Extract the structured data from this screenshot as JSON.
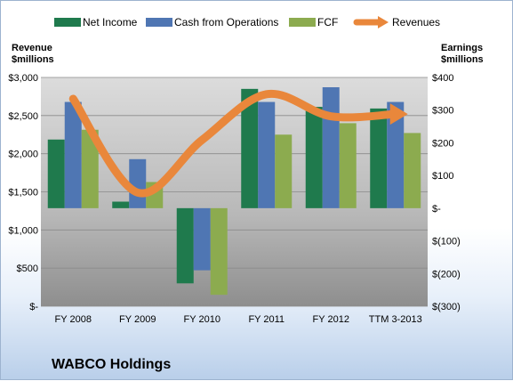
{
  "chart_data": {
    "type": "bar",
    "company_name": "WABCO Holdings",
    "categories": [
      "FY 2008",
      "FY 2009",
      "FY 2010",
      "FY 2011",
      "FY 2012",
      "TTM 3-2013"
    ],
    "left_axis": {
      "title_line1": "Revenue",
      "title_line2": "$millions",
      "ticks": [
        "$-",
        "$500",
        "$1,000",
        "$1,500",
        "$2,000",
        "$2,500",
        "$3,000"
      ],
      "ylim": [
        0,
        3000
      ]
    },
    "right_axis": {
      "title_line1": "Earnings",
      "title_line2": "$millions",
      "ticks": [
        "$(300)",
        "$(200)",
        "$(100)",
        "$-",
        "$100",
        "$200",
        "$300",
        "$400"
      ],
      "ylim": [
        -300,
        400
      ]
    },
    "series": [
      {
        "name": "Net Income",
        "axis": "right",
        "kind": "bar",
        "color": "#1f7a4d",
        "values": [
          210,
          20,
          -230,
          365,
          310,
          305
        ]
      },
      {
        "name": "Cash from Operations",
        "axis": "right",
        "kind": "bar",
        "color": "#4f76b3",
        "values": [
          325,
          150,
          -190,
          325,
          370,
          325
        ]
      },
      {
        "name": "FCF",
        "axis": "right",
        "kind": "bar",
        "color": "#8cab4f",
        "values": [
          240,
          80,
          -265,
          225,
          260,
          230
        ]
      },
      {
        "name": "Revenues",
        "axis": "left",
        "kind": "line",
        "color": "#e9873b",
        "values": [
          2720,
          1490,
          2180,
          2780,
          2490,
          2520
        ]
      }
    ],
    "legend_position": "top",
    "grid": true
  }
}
